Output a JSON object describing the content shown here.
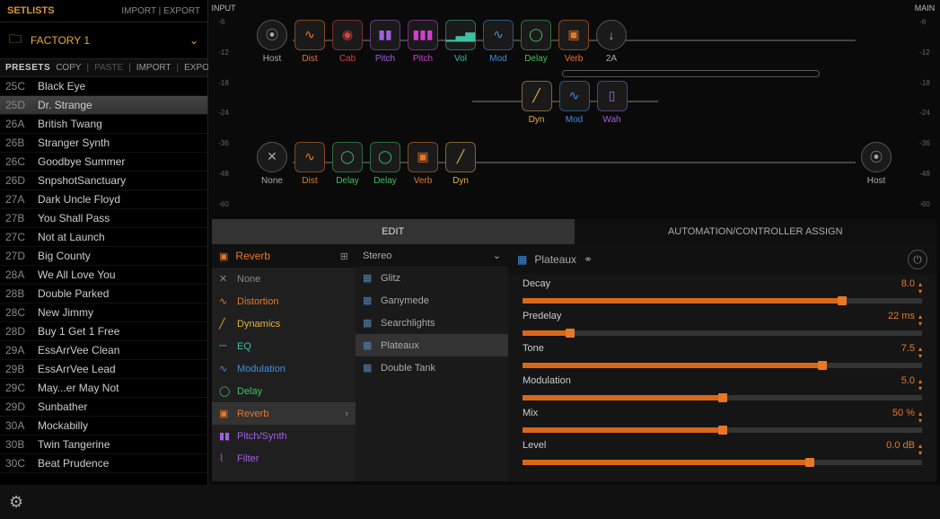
{
  "sidebar": {
    "setlists_label": "SETLISTS",
    "import_label": "IMPORT",
    "export_label": "EXPORT",
    "factory_label": "FACTORY 1",
    "presets_label": "PRESETS",
    "copy_label": "COPY",
    "paste_label": "PASTE",
    "presets": [
      {
        "code": "25C",
        "name": "Black Eye"
      },
      {
        "code": "25D",
        "name": "Dr. Strange",
        "selected": true
      },
      {
        "code": "26A",
        "name": "British Twang"
      },
      {
        "code": "26B",
        "name": "Stranger Synth"
      },
      {
        "code": "26C",
        "name": "Goodbye Summer"
      },
      {
        "code": "26D",
        "name": "SnpshotSanctuary"
      },
      {
        "code": "27A",
        "name": "Dark Uncle Floyd"
      },
      {
        "code": "27B",
        "name": "You Shall Pass"
      },
      {
        "code": "27C",
        "name": "Not at Launch"
      },
      {
        "code": "27D",
        "name": "Big County"
      },
      {
        "code": "28A",
        "name": "We All Love You"
      },
      {
        "code": "28B",
        "name": "Double Parked"
      },
      {
        "code": "28C",
        "name": "New Jimmy"
      },
      {
        "code": "28D",
        "name": "Buy 1 Get 1 Free"
      },
      {
        "code": "29A",
        "name": "EssArrVee Clean"
      },
      {
        "code": "29B",
        "name": "EssArrVee Lead"
      },
      {
        "code": "29C",
        "name": "May...er May Not"
      },
      {
        "code": "29D",
        "name": "Sunbather"
      },
      {
        "code": "30A",
        "name": "Mockabilly"
      },
      {
        "code": "30B",
        "name": "Twin Tangerine"
      },
      {
        "code": "30C",
        "name": "Beat Prudence"
      }
    ]
  },
  "meters": {
    "input_label": "INPUT",
    "main_label": "MAIN",
    "ticks": [
      "-6",
      "-12",
      "-18",
      "-24",
      "-36",
      "-48",
      "-60"
    ]
  },
  "chains": {
    "row1": [
      {
        "label": "Host",
        "shape": "circle",
        "color": "#aaa",
        "glyph": "⦿"
      },
      {
        "label": "Dist",
        "color": "#e87828",
        "glyph": "∿"
      },
      {
        "label": "Cab",
        "color": "#d84040",
        "glyph": "◉"
      },
      {
        "label": "Pitch",
        "color": "#a060e0",
        "glyph": "▮▮"
      },
      {
        "label": "Pitch",
        "color": "#d040d0",
        "glyph": "▮▮▮"
      },
      {
        "label": "Vol",
        "color": "#40c0a0",
        "glyph": "▁▃▅"
      },
      {
        "label": "Mod",
        "color": "#4090e0",
        "glyph": "∿"
      },
      {
        "label": "Delay",
        "color": "#40c060",
        "glyph": "◯"
      },
      {
        "label": "Verb",
        "color": "#e87828",
        "glyph": "▣"
      },
      {
        "label": "2A",
        "shape": "circle",
        "color": "#aaa",
        "glyph": "↓"
      }
    ],
    "row2": [
      {
        "label": "Dyn",
        "color": "#e8b040",
        "glyph": "╱"
      },
      {
        "label": "Mod",
        "color": "#4090e0",
        "glyph": "∿"
      },
      {
        "label": "Wah",
        "color": "#a060e0",
        "glyph": "▯"
      }
    ],
    "row3": [
      {
        "label": "None",
        "shape": "circle",
        "color": "#aaa",
        "glyph": "✕"
      },
      {
        "label": "Dist",
        "color": "#e87828",
        "glyph": "∿"
      },
      {
        "label": "Delay",
        "color": "#40c060",
        "glyph": "◯"
      },
      {
        "label": "Delay",
        "color": "#40c060",
        "glyph": "◯"
      },
      {
        "label": "Verb",
        "color": "#e87828",
        "glyph": "▣"
      },
      {
        "label": "Dyn",
        "color": "#e8b040",
        "glyph": "╱"
      },
      {
        "label": "Host",
        "shape": "circle",
        "color": "#aaa",
        "glyph": "⦿",
        "end": true
      }
    ]
  },
  "editor": {
    "tab_edit": "EDIT",
    "tab_assign": "AUTOMATION/CONTROLLER ASSIGN",
    "category_title": "Reverb",
    "categories": [
      {
        "label": "None",
        "color": "#888",
        "glyph": "✕"
      },
      {
        "label": "Distortion",
        "color": "#e87828",
        "glyph": "∿"
      },
      {
        "label": "Dynamics",
        "color": "#e8b040",
        "glyph": "╱"
      },
      {
        "label": "EQ",
        "color": "#40c0a0",
        "glyph": "⎓"
      },
      {
        "label": "Modulation",
        "color": "#4090e0",
        "glyph": "∿"
      },
      {
        "label": "Delay",
        "color": "#40c060",
        "glyph": "◯"
      },
      {
        "label": "Reverb",
        "color": "#e87828",
        "glyph": "▣",
        "selected": true
      },
      {
        "label": "Pitch/Synth",
        "color": "#a060e0",
        "glyph": "▮▮"
      },
      {
        "label": "Filter",
        "color": "#a060e0",
        "glyph": "⌇"
      }
    ],
    "stereo_label": "Stereo",
    "models": [
      {
        "label": "Glitz"
      },
      {
        "label": "Ganymede"
      },
      {
        "label": "Searchlights"
      },
      {
        "label": "Plateaux",
        "selected": true
      },
      {
        "label": "Double Tank"
      }
    ],
    "model_header": "Plateaux",
    "params": [
      {
        "name": "Decay",
        "value": "8.0",
        "pct": 80
      },
      {
        "name": "Predelay",
        "value": "22 ms",
        "pct": 12
      },
      {
        "name": "Tone",
        "value": "7.5",
        "pct": 75
      },
      {
        "name": "Modulation",
        "value": "5.0",
        "pct": 50
      },
      {
        "name": "Mix",
        "value": "50 %",
        "pct": 50
      },
      {
        "name": "Level",
        "value": "0.0 dB",
        "pct": 72
      }
    ]
  },
  "colors": {
    "accent": "#e87828",
    "gold": "#d89838"
  }
}
